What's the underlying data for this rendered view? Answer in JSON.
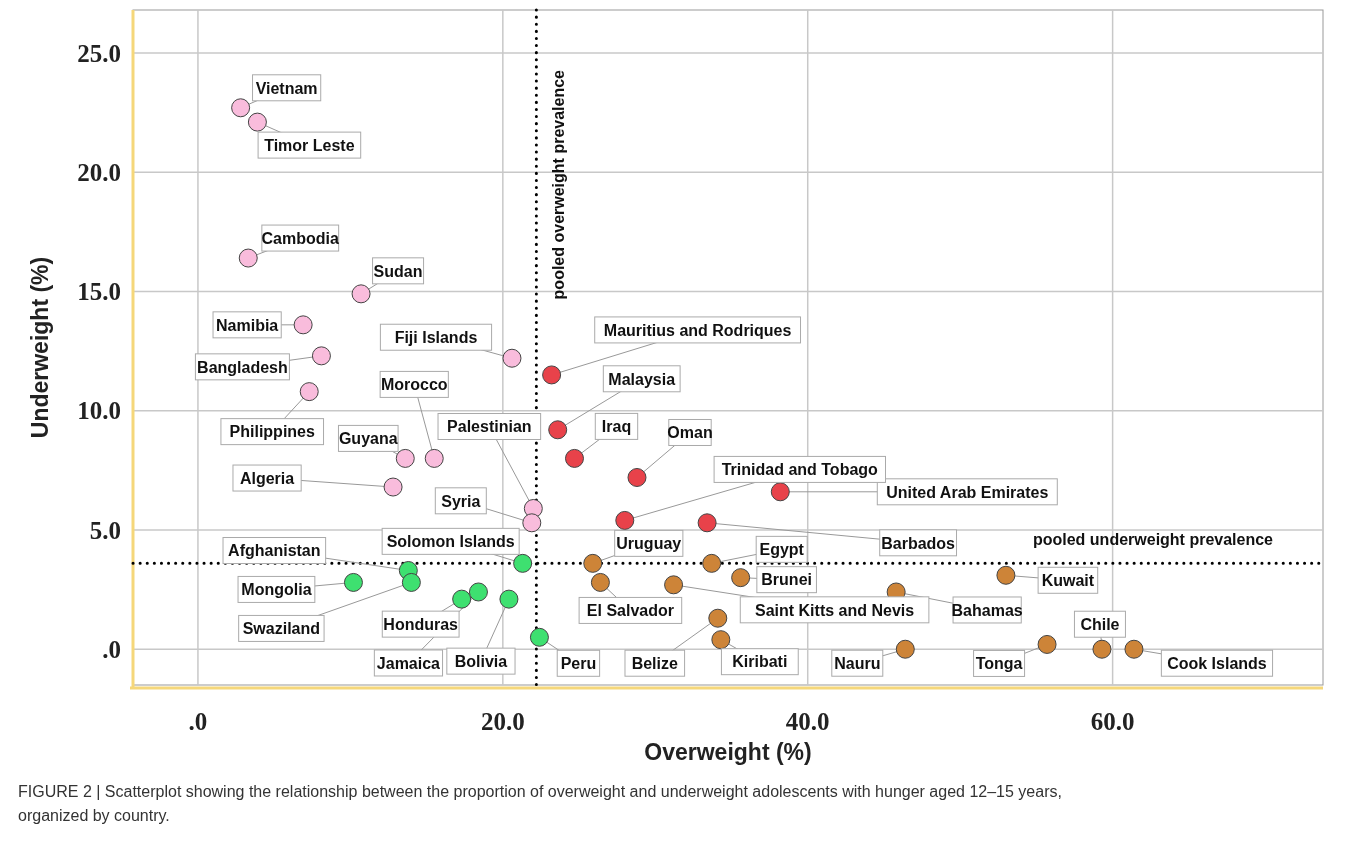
{
  "chart_data": {
    "type": "scatter",
    "xlabel": "Overweight (%)",
    "ylabel": "Underweight (%)",
    "xlim": [
      -4.26,
      73.8
    ],
    "ylim": [
      -1.5,
      26.8
    ],
    "xticks": [
      {
        "value": 0,
        "label": ".0"
      },
      {
        "value": 20,
        "label": "20.0"
      },
      {
        "value": 40,
        "label": "40.0"
      },
      {
        "value": 60,
        "label": "60.0"
      }
    ],
    "yticks": [
      {
        "value": 0,
        "label": ".0"
      },
      {
        "value": 5,
        "label": "5.0"
      },
      {
        "value": 10,
        "label": "10.0"
      },
      {
        "value": 15,
        "label": "15.0"
      },
      {
        "value": 20,
        "label": "20.0"
      },
      {
        "value": 25,
        "label": "25.0"
      }
    ],
    "grid": true,
    "marker": "circle",
    "series": [
      {
        "color": "#f9bcdc",
        "x": [
          2.8,
          3.9,
          3.3,
          10.7,
          6.9,
          8.1,
          7.3,
          20.6,
          13.6,
          15.5,
          12.8,
          22.0,
          21.9
        ],
        "values": [
          22.7,
          22.1,
          16.4,
          14.9,
          13.6,
          12.3,
          10.8,
          12.2,
          8.0,
          8.0,
          6.8,
          5.9,
          5.3
        ]
      },
      {
        "color": "#e8424a",
        "x": [
          23.2,
          23.6,
          24.7,
          28.8,
          38.2,
          28.0,
          33.4
        ],
        "values": [
          11.5,
          9.2,
          8.0,
          7.2,
          6.6,
          5.4,
          5.3
        ]
      },
      {
        "color": "#cd8438",
        "x": [
          25.9,
          33.7,
          26.4,
          35.6,
          31.2,
          45.8,
          53.0,
          34.1,
          34.3,
          46.4,
          55.7,
          59.3,
          61.4
        ],
        "values": [
          3.6,
          3.6,
          2.8,
          3.0,
          2.7,
          2.4,
          3.1,
          1.3,
          0.4,
          0.0,
          0.2,
          0.0,
          0.0
        ]
      },
      {
        "color": "#3ee070",
        "x": [
          13.8,
          10.2,
          14.0,
          17.3,
          18.4,
          20.4,
          21.3,
          22.4
        ],
        "values": [
          3.3,
          2.8,
          2.8,
          2.1,
          2.4,
          2.1,
          3.6,
          0.5
        ]
      }
    ],
    "ref_lines": [
      {
        "axis": "x",
        "value": 22.2,
        "label": "pooled overweight prevalence",
        "color": "#000000",
        "line_style": "dotted"
      },
      {
        "axis": "y",
        "value": 3.6,
        "label": "pooled underweight prevalence",
        "color": "#000000",
        "line_style": "dotted"
      }
    ],
    "annotations": [
      {
        "text": "Vietnam",
        "x": 2.8,
        "y": 22.7
      },
      {
        "text": "Timor Leste",
        "x": 3.9,
        "y": 22.1
      },
      {
        "text": "Cambodia",
        "x": 3.3,
        "y": 16.4
      },
      {
        "text": "Sudan",
        "x": 10.7,
        "y": 14.9
      },
      {
        "text": "Namibia",
        "x": 6.9,
        "y": 13.6
      },
      {
        "text": "Bangladesh",
        "x": 8.1,
        "y": 12.3
      },
      {
        "text": "Philippines",
        "x": 7.3,
        "y": 10.8
      },
      {
        "text": "Fiji Islands",
        "x": 20.6,
        "y": 12.2
      },
      {
        "text": "Guyana",
        "x": 13.6,
        "y": 8.0
      },
      {
        "text": "Morocco",
        "x": 15.5,
        "y": 8.0
      },
      {
        "text": "Algeria",
        "x": 12.8,
        "y": 6.8
      },
      {
        "text": "Palestinian",
        "x": 22.0,
        "y": 5.9
      },
      {
        "text": "Syria",
        "x": 21.9,
        "y": 5.3
      },
      {
        "text": "Mauritius and Rodriques",
        "x": 23.2,
        "y": 11.5
      },
      {
        "text": "Malaysia",
        "x": 23.6,
        "y": 9.2
      },
      {
        "text": "Iraq",
        "x": 24.7,
        "y": 8.0
      },
      {
        "text": "Oman",
        "x": 28.8,
        "y": 7.2
      },
      {
        "text": "United Arab Emirates",
        "x": 38.2,
        "y": 6.6
      },
      {
        "text": "Trinidad and Tobago",
        "x": 28.0,
        "y": 5.4
      },
      {
        "text": "Barbados",
        "x": 33.4,
        "y": 5.3
      },
      {
        "text": "Uruguay",
        "x": 25.9,
        "y": 3.6
      },
      {
        "text": "Egypt",
        "x": 33.7,
        "y": 3.6
      },
      {
        "text": "El Salvador",
        "x": 26.4,
        "y": 2.8
      },
      {
        "text": "Brunei",
        "x": 35.6,
        "y": 3.0
      },
      {
        "text": "Saint Kitts and Nevis",
        "x": 31.2,
        "y": 2.7
      },
      {
        "text": "Bahamas",
        "x": 45.8,
        "y": 2.4
      },
      {
        "text": "Kuwait",
        "x": 53.0,
        "y": 3.1
      },
      {
        "text": "Belize",
        "x": 34.1,
        "y": 1.3
      },
      {
        "text": "Kiribati",
        "x": 34.3,
        "y": 0.4
      },
      {
        "text": "Nauru",
        "x": 46.4,
        "y": 0.0
      },
      {
        "text": "Tonga",
        "x": 55.7,
        "y": 0.2
      },
      {
        "text": "Chile",
        "x": 59.3,
        "y": 0.0
      },
      {
        "text": "Cook Islands",
        "x": 61.4,
        "y": 0.0
      },
      {
        "text": "Afghanistan",
        "x": 13.8,
        "y": 3.3
      },
      {
        "text": "Mongolia",
        "x": 10.2,
        "y": 2.8
      },
      {
        "text": "Swaziland",
        "x": 14.0,
        "y": 2.8
      },
      {
        "text": "Honduras",
        "x": 17.3,
        "y": 2.1
      },
      {
        "text": "Jamaica",
        "x": 18.4,
        "y": 2.4
      },
      {
        "text": "Bolivia",
        "x": 20.4,
        "y": 2.1
      },
      {
        "text": "Solomon Islands",
        "x": 21.3,
        "y": 3.6
      },
      {
        "text": "Peru",
        "x": 22.4,
        "y": 0.5
      },
      "FIGURE 2 | Scatterplot showing the relationship between the proportion of overweight and underweight adolescents with hunger aged 12–15 years, organized by country."
    ]
  }
}
